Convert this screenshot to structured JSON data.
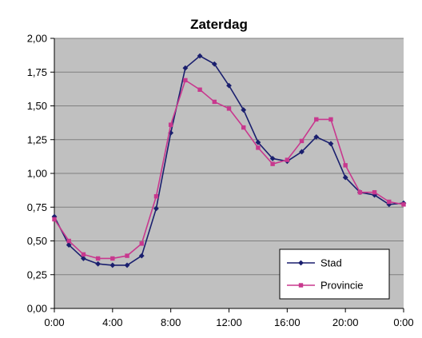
{
  "chart_data": {
    "type": "line",
    "title": "Zaterdag",
    "xlabel": "",
    "ylabel": "",
    "x": [
      "0:00",
      "1:00",
      "2:00",
      "3:00",
      "4:00",
      "5:00",
      "6:00",
      "7:00",
      "8:00",
      "9:00",
      "10:00",
      "11:00",
      "12:00",
      "13:00",
      "14:00",
      "15:00",
      "16:00",
      "17:00",
      "18:00",
      "19:00",
      "20:00",
      "21:00",
      "22:00",
      "23:00",
      "24:00"
    ],
    "x_tick_labels": [
      "0:00",
      "4:00",
      "8:00",
      "12:00",
      "16:00",
      "20:00",
      "0:00"
    ],
    "y_tick_labels": [
      "0,00",
      "0,25",
      "0,50",
      "0,75",
      "1,00",
      "1,25",
      "1,50",
      "1,75",
      "2,00"
    ],
    "ylim": [
      0,
      2
    ],
    "xlim": [
      0,
      24
    ],
    "grid": true,
    "legend_position": "bottom-right",
    "colors": {
      "plot_background": "#c0c0c0",
      "grid": "#808080"
    },
    "series": [
      {
        "name": "Stad",
        "color": "#1a1f6e",
        "marker": "diamond",
        "values": [
          0.68,
          0.47,
          0.37,
          0.33,
          0.32,
          0.32,
          0.39,
          0.74,
          1.3,
          1.78,
          1.87,
          1.81,
          1.65,
          1.47,
          1.23,
          1.11,
          1.09,
          1.16,
          1.27,
          1.22,
          0.97,
          0.86,
          0.84,
          0.77,
          0.78
        ]
      },
      {
        "name": "Provincie",
        "color": "#c8388e",
        "marker": "square",
        "values": [
          0.66,
          0.5,
          0.4,
          0.37,
          0.37,
          0.39,
          0.48,
          0.83,
          1.36,
          1.69,
          1.62,
          1.53,
          1.48,
          1.34,
          1.19,
          1.07,
          1.1,
          1.24,
          1.4,
          1.4,
          1.06,
          0.86,
          0.86,
          0.79,
          0.77
        ]
      }
    ]
  }
}
